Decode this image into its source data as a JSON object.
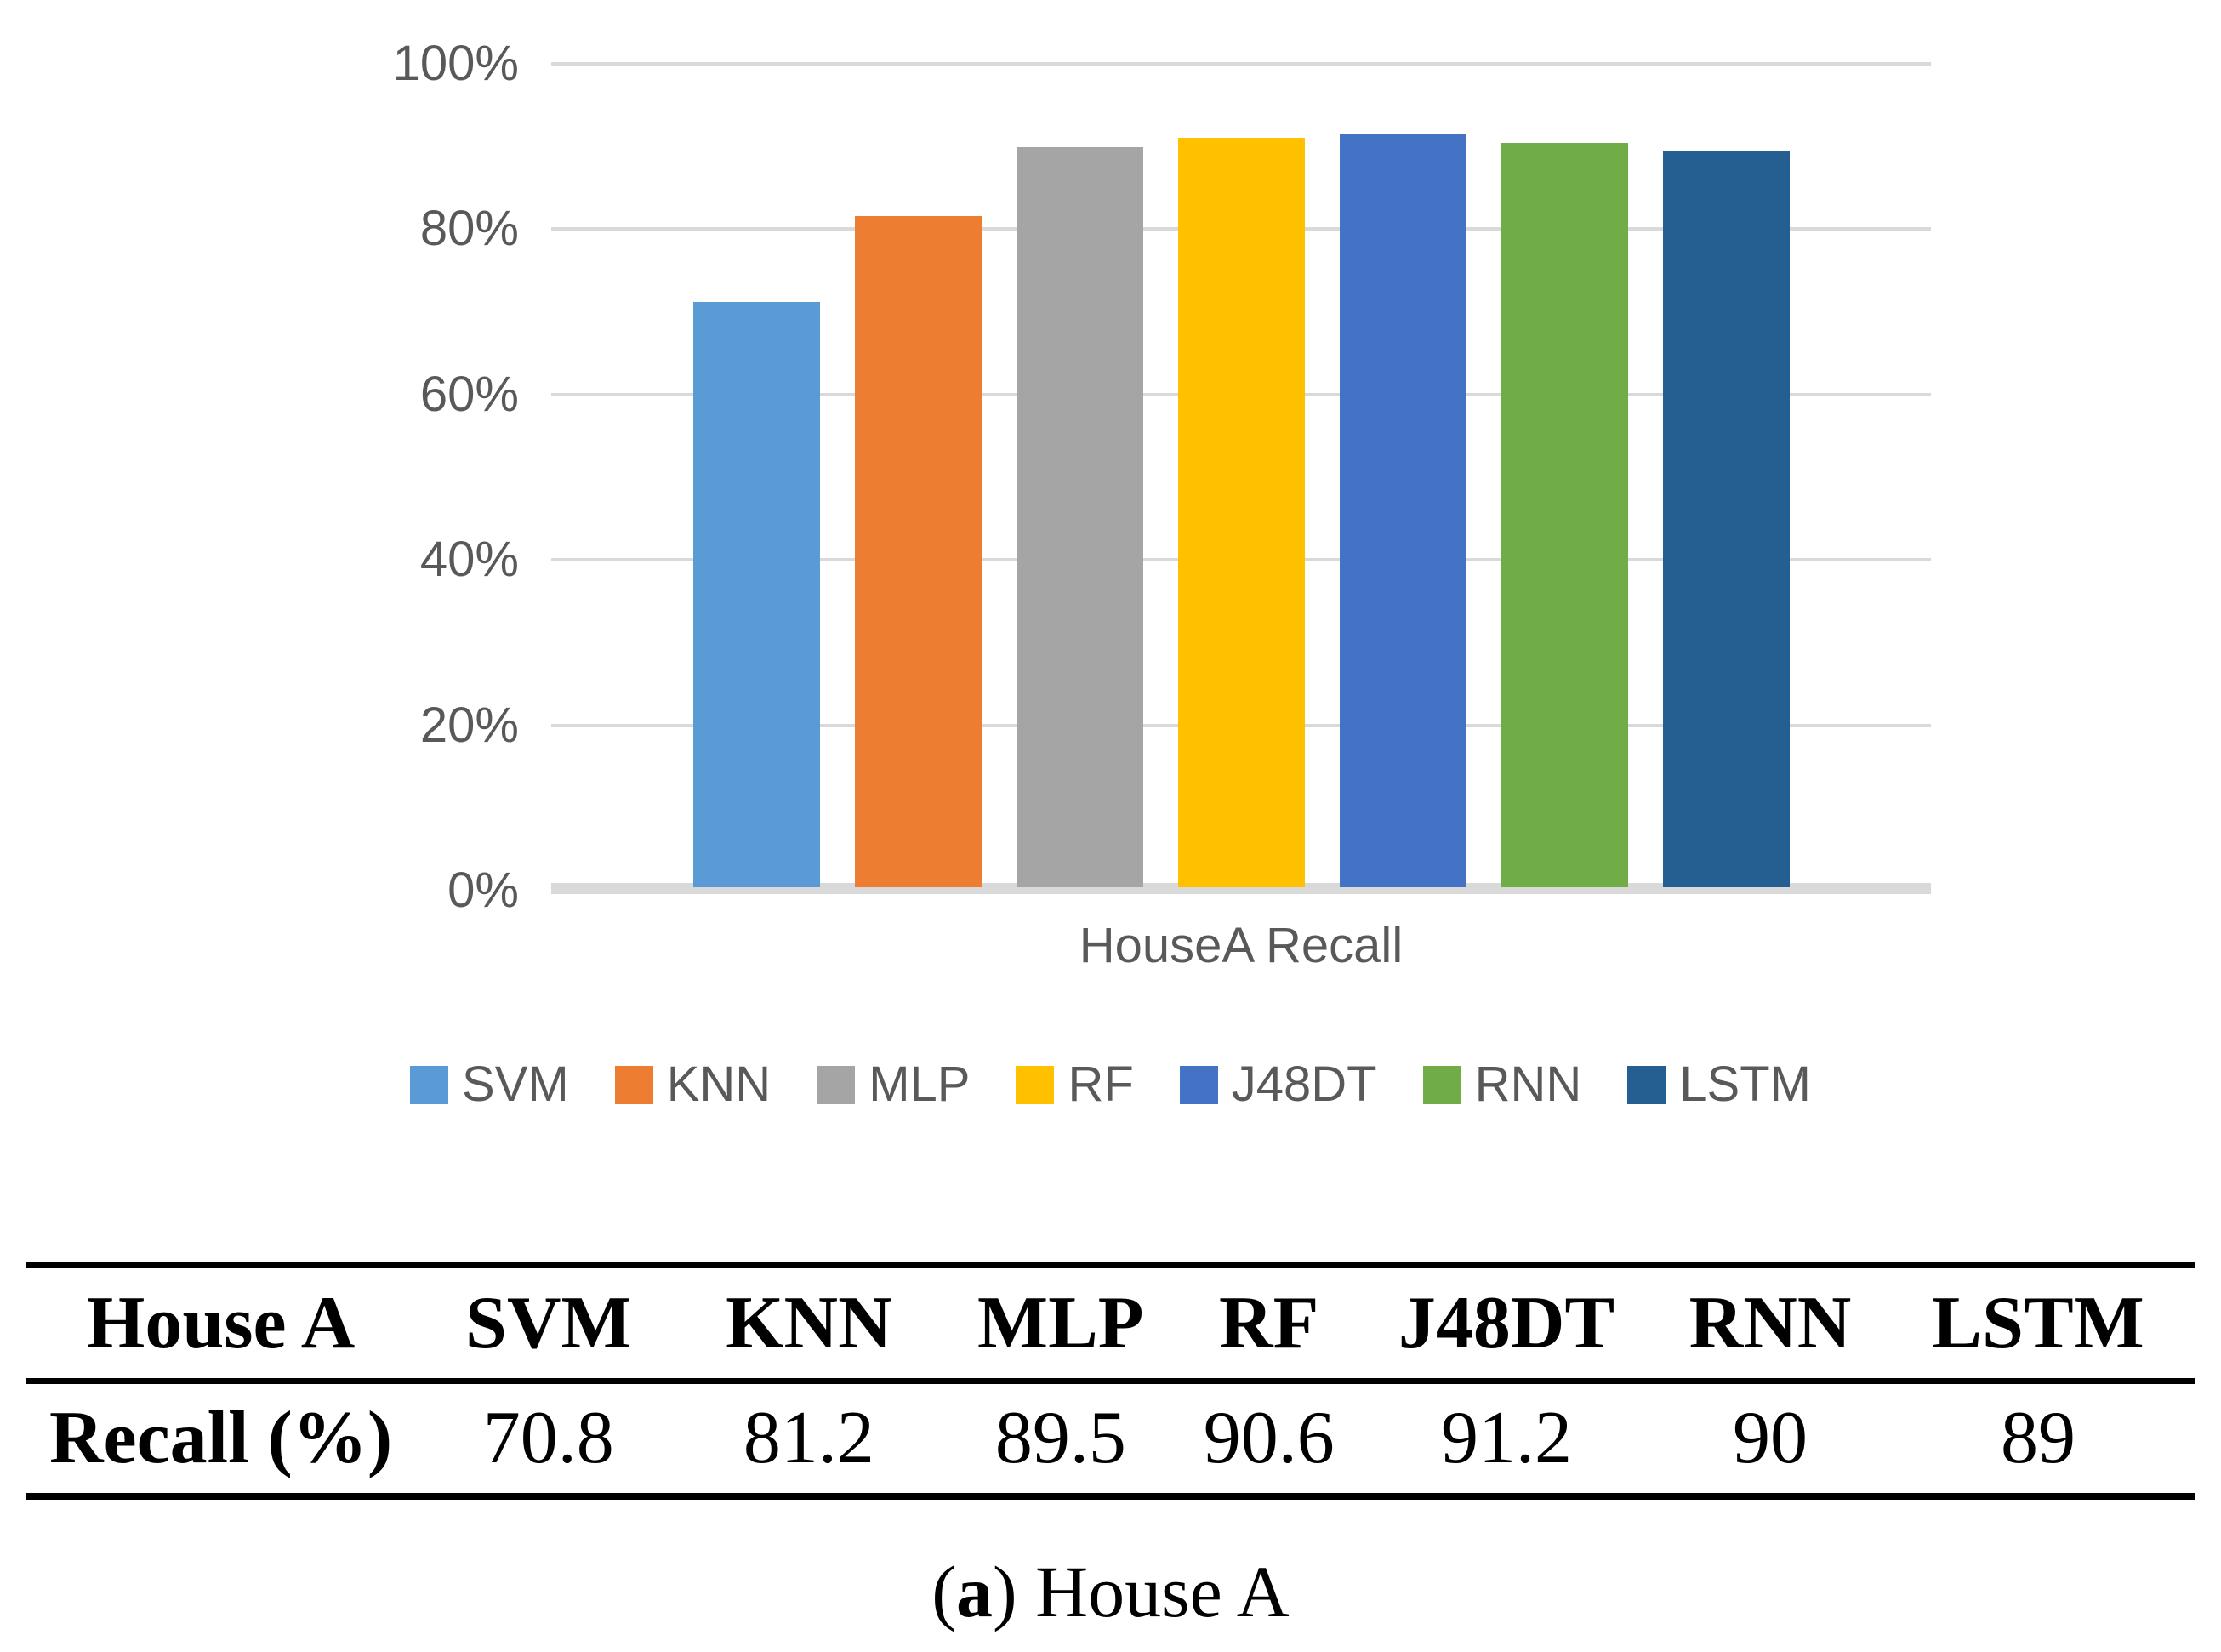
{
  "chart_data": {
    "type": "bar",
    "title": "",
    "categories": [
      "SVM",
      "KNN",
      "MLP",
      "RF",
      "J48DT",
      "RNN",
      "LSTM"
    ],
    "values": [
      70.8,
      81.2,
      89.5,
      90.6,
      91.2,
      90,
      89
    ],
    "colors": [
      "#5B9BD5",
      "#ED7D31",
      "#A5A5A5",
      "#FFC000",
      "#4472C4",
      "#70AD47",
      "#255E91"
    ],
    "xlabel": "HouseA Recall",
    "ylabel": "",
    "ylim": [
      0,
      100
    ],
    "ytick_labels": [
      "100%",
      "80%",
      "60%",
      "40%",
      "20%",
      "0%"
    ],
    "grid": true,
    "gridline_color": "#D9D9D9",
    "axis_text_color": "#595959",
    "legend_position": "bottom",
    "legend": [
      "SVM",
      "KNN",
      "MLP",
      "RF",
      "J48DT",
      "RNN",
      "LSTM"
    ]
  },
  "table": {
    "header_row": [
      "House A",
      "SVM",
      "KNN",
      "MLP",
      "RF",
      "J48DT",
      "RNN",
      "LSTM"
    ],
    "data_rows": [
      [
        "Recall (%)",
        "70.8",
        "81.2",
        "89.5",
        "90.6",
        "91.2",
        "90",
        "89"
      ]
    ]
  },
  "caption": {
    "open": "(",
    "letter": "a",
    "close": ")",
    "title": "House A"
  }
}
